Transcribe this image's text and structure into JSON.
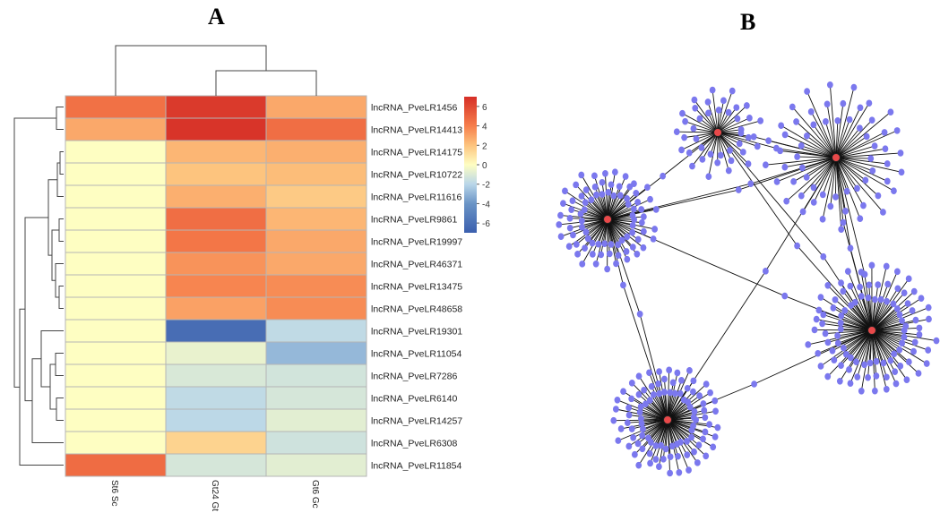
{
  "panels": {
    "a_label": "A",
    "b_label": "B"
  },
  "colors": {
    "high": "#d73027",
    "mid": "#fefec2",
    "low": "#4575b4",
    "node": "#7b78ee",
    "hub": "#e8494a",
    "edge": "#111111"
  },
  "chart_data": [
    {
      "type": "heatmap",
      "title": "",
      "columns": [
        "St6 Sc",
        "Gt24 Gt",
        "Gt6 Gc"
      ],
      "rows": [
        "lncRNA_PveLR1456",
        "lncRNA_PveLR14413",
        "lncRNA_PveLR14175",
        "lncRNA_PveLR10722",
        "lncRNA_PveLR11616",
        "lncRNA_PveLR9861",
        "lncRNA_PveLR19997",
        "lncRNA_PveLR46371",
        "lncRNA_PveLR13475",
        "lncRNA_PveLR48658",
        "lncRNA_PveLR19301",
        "lncRNA_PveLR11054",
        "lncRNA_PveLR7286",
        "lncRNA_PveLR6140",
        "lncRNA_PveLR14257",
        "lncRNA_PveLR6308",
        "lncRNA_PveLR11854"
      ],
      "values": [
        [
          4.5,
          6.6,
          2.8
        ],
        [
          2.8,
          6.8,
          4.6
        ],
        [
          0,
          2.4,
          2.6
        ],
        [
          0,
          2.0,
          2.2
        ],
        [
          0,
          2.6,
          1.8
        ],
        [
          0,
          4.6,
          2.4
        ],
        [
          0,
          4.3,
          2.8
        ],
        [
          0,
          3.4,
          2.8
        ],
        [
          0,
          3.8,
          3.6
        ],
        [
          0,
          3.0,
          3.6
        ],
        [
          0,
          -6.2,
          -1.8
        ],
        [
          0,
          -0.6,
          -2.9
        ],
        [
          0,
          -1.1,
          -1.3
        ],
        [
          0,
          -1.8,
          -1.2
        ],
        [
          0,
          -1.9,
          -0.8
        ],
        [
          0,
          1.5,
          -1.4
        ],
        [
          4.7,
          -1.2,
          -0.8
        ]
      ],
      "colorbar": {
        "min": -7,
        "max": 7,
        "ticks": [
          6,
          4,
          2,
          0,
          -2,
          -4,
          -6
        ]
      },
      "clustered": {
        "rows": true,
        "columns": true
      }
    },
    {
      "type": "network",
      "title": "",
      "hubs": 5,
      "leaf_counts": [
        40,
        60,
        80,
        95,
        95
      ],
      "shared_nodes": 15
    }
  ]
}
